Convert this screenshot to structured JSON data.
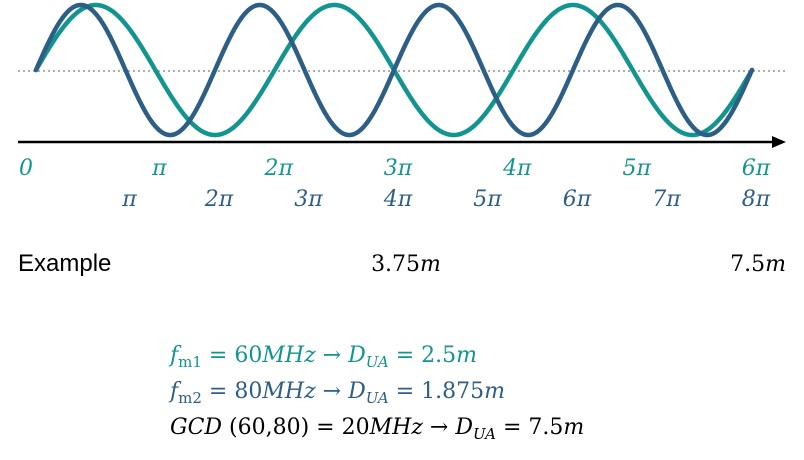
{
  "colors": {
    "teal": "#12958f",
    "blue": "#2d5e85",
    "axis": "#000000",
    "dotted": "#7f7f7f",
    "text": "#000000"
  },
  "waves": [
    {
      "name": "",
      "color": "#12958f",
      "periods": 3,
      "phase_note": "sine from 0 to 6π"
    },
    {
      "name": "",
      "color": "#2d5e85",
      "periods": 4,
      "phase_note": "sine from 0 to 8π"
    }
  ],
  "ticks_teal": [
    "0",
    "π",
    "2π",
    "3π",
    "4π",
    "5π",
    "6π"
  ],
  "ticks_blue": [
    "π",
    "2π",
    "3π",
    "4π",
    "5π",
    "6π",
    "7π",
    "8π"
  ],
  "example": {
    "label": "Example",
    "mid_value": "3.75m",
    "end_value": "7.5m"
  },
  "equations": {
    "line1": "f_m1 = 60MHz  → D_UA = 2.5m",
    "line2": "f_m2 = 80MHz  → D_UA = 1.875m",
    "line3": "GCD (60,80) = 20MHz  → D_UA = 7.5m"
  }
}
